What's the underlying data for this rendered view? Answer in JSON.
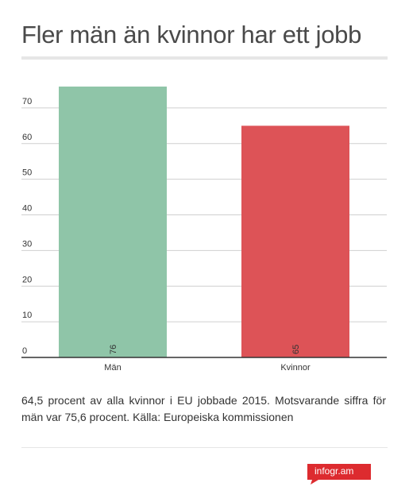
{
  "title": "Fler män än kvinnor har ett jobb",
  "caption": "64,5 procent av alla kvinnor i EU jobbade 2015. Motsvarande siffra för män var 75,6 procent. Källa: Europeiska kommissionen",
  "brand": "infogr.am",
  "chart_data": {
    "type": "bar",
    "categories": [
      "Män",
      "Kvinnor"
    ],
    "values": [
      76,
      65
    ],
    "data_labels": [
      "76",
      "65"
    ],
    "colors": [
      "#8fc5a8",
      "#dd5357"
    ],
    "ylim": [
      0,
      78
    ],
    "yticks": [
      0,
      10,
      20,
      30,
      40,
      50,
      60,
      70
    ],
    "grid": true,
    "legend": "none",
    "xlabel": "",
    "ylabel": ""
  },
  "colors": {
    "brand": "#dd2b2f"
  }
}
